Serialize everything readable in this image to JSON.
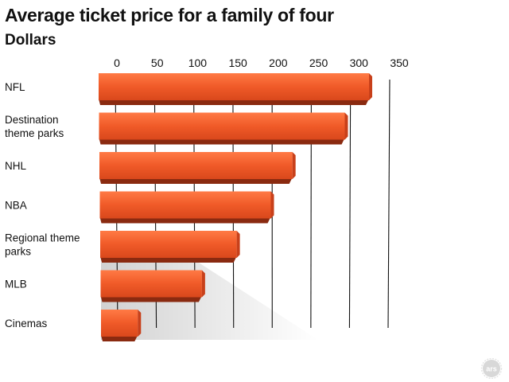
{
  "title": "Average ticket price for a family of four",
  "subtitle": "Dollars",
  "badge_text": "ars",
  "chart_data": {
    "type": "bar",
    "orientation": "horizontal",
    "title": "Average ticket price for a family of four",
    "subtitle": "Dollars",
    "categories": [
      "NFL",
      "Destination theme parks",
      "NHL",
      "NBA",
      "Regional theme parks",
      "MLB",
      "Cinemas"
    ],
    "category_lines": [
      [
        "NFL"
      ],
      [
        "Destination",
        "theme parks"
      ],
      [
        "NHL"
      ],
      [
        "NBA"
      ],
      [
        "Regional theme",
        "parks"
      ],
      [
        "MLB"
      ],
      [
        "Cinemas"
      ]
    ],
    "values": [
      350,
      315,
      245,
      215,
      170,
      125,
      45
    ],
    "xlim": [
      0,
      350
    ],
    "ticks": [
      0,
      50,
      100,
      150,
      200,
      250,
      300,
      350
    ],
    "grid": true,
    "bar_color": "#f05a28",
    "bar_shadow_color": "#8a2a10"
  }
}
